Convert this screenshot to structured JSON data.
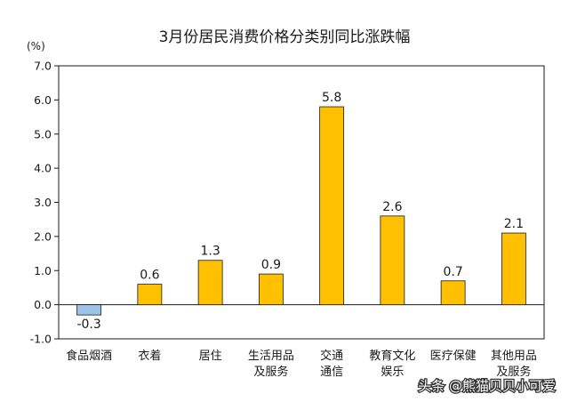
{
  "chart_data": {
    "type": "bar",
    "title": "3月份居民消费价格分类别同比涨跌幅",
    "unit_label": "(%)",
    "categories": [
      [
        "食品烟酒"
      ],
      [
        "衣着"
      ],
      [
        "居住"
      ],
      [
        "生活用品",
        "及服务"
      ],
      [
        "交通",
        "通信"
      ],
      [
        "教育文化",
        "娱乐"
      ],
      [
        "医疗保健"
      ],
      [
        "其他用品",
        "及服务"
      ]
    ],
    "values": [
      -0.3,
      0.6,
      1.3,
      0.9,
      5.8,
      2.6,
      0.7,
      2.1
    ],
    "value_labels": [
      "-0.3",
      "0.6",
      "1.3",
      "0.9",
      "5.8",
      "2.6",
      "0.7",
      "2.1"
    ],
    "ylim": [
      -1.0,
      7.0
    ],
    "yticks": [
      -1.0,
      0.0,
      1.0,
      2.0,
      3.0,
      4.0,
      5.0,
      6.0,
      7.0
    ],
    "ytick_labels": [
      "-1.0",
      "0.0",
      "1.0",
      "2.0",
      "3.0",
      "4.0",
      "5.0",
      "6.0",
      "7.0"
    ],
    "grid": false,
    "colors": {
      "positive_bar": "#FFC000",
      "negative_bar": "#9DC3E6",
      "bar_border": "#1a1a1a",
      "axis": "#1a1a1a"
    }
  },
  "watermark": {
    "text": "头条 @熊猫贝贝小可爱"
  }
}
